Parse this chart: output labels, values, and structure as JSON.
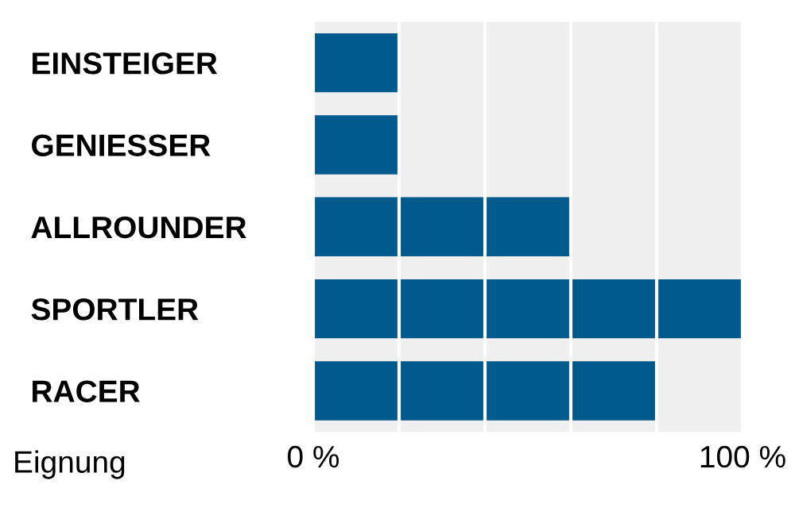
{
  "chart_data": {
    "type": "bar",
    "orientation": "horizontal",
    "categories": [
      "EINSTEIGER",
      "GENIESSER",
      "ALLROUNDER",
      "SPORTLER",
      "RACER"
    ],
    "values": [
      20,
      20,
      60,
      100,
      80
    ],
    "color": "#005a8c",
    "xlabel": "Eignung",
    "xlim": [
      0,
      100
    ],
    "xticks": [
      {
        "value": 0,
        "label": "0 %"
      },
      {
        "value": 20,
        "label": null
      },
      {
        "value": 40,
        "label": null
      },
      {
        "value": 60,
        "label": null
      },
      {
        "value": 80,
        "label": null
      },
      {
        "value": 100,
        "label": "100 %"
      }
    ],
    "grid": "x"
  }
}
